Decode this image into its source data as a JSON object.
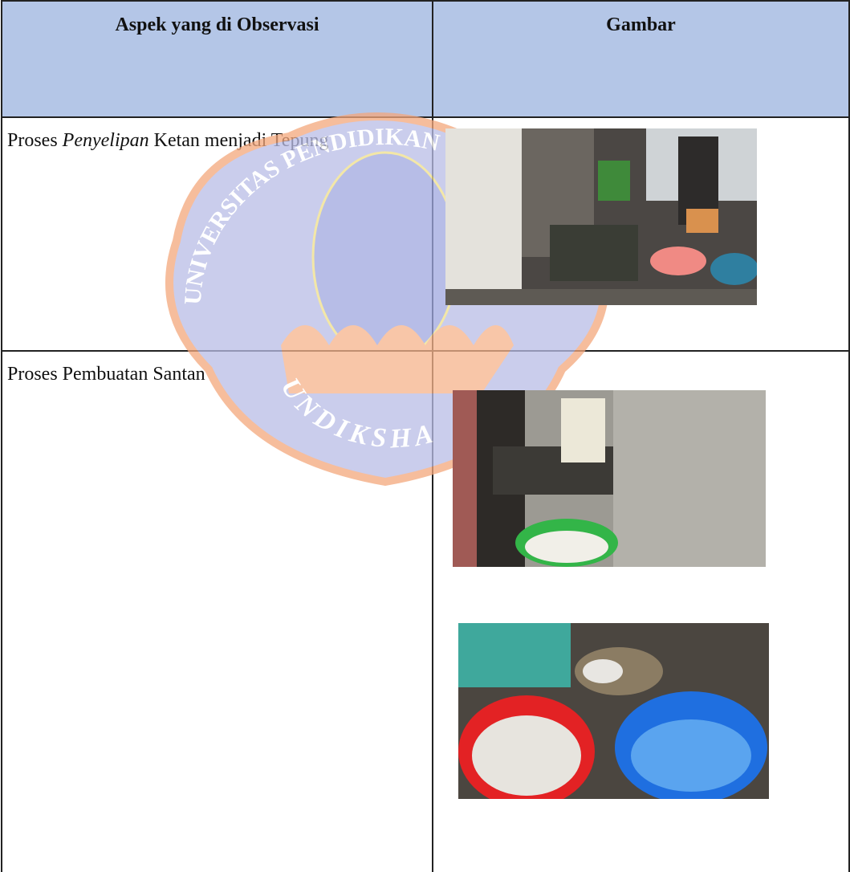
{
  "table": {
    "header": [
      "Aspek yang di Observasi",
      "Gambar"
    ],
    "rows": [
      {
        "aspect": [
          "Proses ",
          "Penyelipan",
          " Ketan menjadi Tepung"
        ]
      },
      {
        "aspect": [
          "Proses Pembuatan Santan"
        ]
      }
    ]
  },
  "watermark": {
    "arc": "UNIVERSITAS PENDIDIKAN GANESHA",
    "name": "UNDIKSHA"
  }
}
